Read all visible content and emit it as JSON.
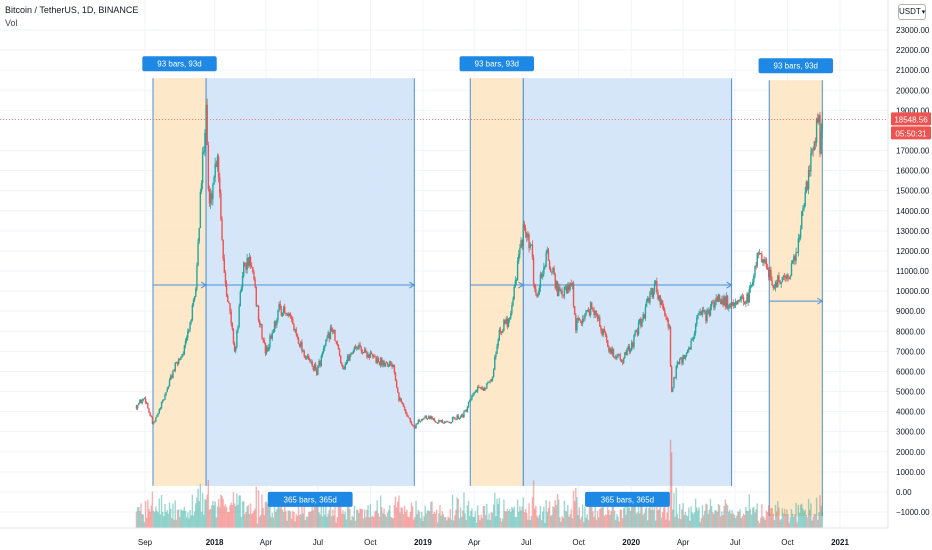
{
  "header": {
    "title": "Bitcoin / TetherUS, 1D, BINANCE",
    "indicator": "Vol",
    "currency": "USDT"
  },
  "price_tag": {
    "price": "18548.56",
    "countdown": "05:50:31"
  },
  "colors": {
    "orange_zone": "#fde5c3",
    "blue_zone": "#cfe3f7",
    "label_bg": "#1e88e5",
    "price_tag": "#ef5350",
    "up": "#26a69a",
    "down": "#ef5350",
    "measure_line": "#4a90d9"
  },
  "chart_data": {
    "type": "candlestick",
    "title": "Bitcoin / TetherUS, 1D, BINANCE",
    "ylim": [
      -1500,
      24500
    ],
    "y_ticks": [
      23000,
      22000,
      21000,
      20000,
      19000,
      17000,
      16000,
      15000,
      14000,
      13000,
      12000,
      11000,
      10000,
      9000,
      8000,
      7000,
      6000,
      5000,
      4000,
      3000,
      2000,
      1000,
      0,
      -1000
    ],
    "y_tick_labels": [
      "23000.00",
      "22000.00",
      "21000.00",
      "20000.00",
      "19000.00",
      "17000.00",
      "16000.00",
      "15000.00",
      "14000.00",
      "13000.00",
      "12000.00",
      "11000.00",
      "10000.00",
      "9000.00",
      "8000.00",
      "7000.00",
      "6000.00",
      "5000.00",
      "4000.00",
      "3000.00",
      "2000.00",
      "1000.00",
      "0.00",
      "−1000.00"
    ],
    "x_tick_labels": [
      "Sep",
      "2018",
      "Apr",
      "Jul",
      "Oct",
      "2019",
      "Apr",
      "Jul",
      "Oct",
      "2020",
      "Apr",
      "Jul",
      "Oct",
      "2021"
    ],
    "x_tick_dates": [
      "2017-09-01",
      "2018-01-01",
      "2018-04-01",
      "2018-07-01",
      "2018-10-01",
      "2019-01-01",
      "2019-04-01",
      "2019-07-01",
      "2019-10-01",
      "2020-01-01",
      "2020-04-01",
      "2020-07-01",
      "2020-10-01",
      "2021-01-01"
    ],
    "x_range": [
      "2017-08-17",
      "2021-01-20"
    ],
    "close_path": [
      [
        "2017-08-17",
        4300
      ],
      [
        "2017-09-01",
        4700
      ],
      [
        "2017-09-15",
        3300
      ],
      [
        "2017-10-01",
        4400
      ],
      [
        "2017-10-20",
        6000
      ],
      [
        "2017-11-10",
        7200
      ],
      [
        "2017-11-28",
        9700
      ],
      [
        "2017-12-08",
        15000
      ],
      [
        "2017-12-17",
        19500
      ],
      [
        "2017-12-22",
        14000
      ],
      [
        "2018-01-06",
        17000
      ],
      [
        "2018-01-17",
        11200
      ],
      [
        "2018-02-06",
        6900
      ],
      [
        "2018-02-20",
        11200
      ],
      [
        "2018-03-05",
        11500
      ],
      [
        "2018-03-20",
        8500
      ],
      [
        "2018-04-01",
        6900
      ],
      [
        "2018-04-25",
        9200
      ],
      [
        "2018-05-15",
        8500
      ],
      [
        "2018-06-10",
        6700
      ],
      [
        "2018-06-29",
        6000
      ],
      [
        "2018-07-25",
        8200
      ],
      [
        "2018-08-14",
        6200
      ],
      [
        "2018-09-05",
        7300
      ],
      [
        "2018-10-15",
        6500
      ],
      [
        "2018-11-10",
        6400
      ],
      [
        "2018-11-20",
        4700
      ],
      [
        "2018-12-15",
        3200
      ],
      [
        "2019-01-05",
        3800
      ],
      [
        "2019-02-08",
        3400
      ],
      [
        "2019-03-15",
        3900
      ],
      [
        "2019-04-02",
        5000
      ],
      [
        "2019-05-01",
        5400
      ],
      [
        "2019-05-14",
        8000
      ],
      [
        "2019-06-01",
        8600
      ],
      [
        "2019-06-26",
        13000
      ],
      [
        "2019-07-10",
        12000
      ],
      [
        "2019-07-17",
        9500
      ],
      [
        "2019-08-06",
        11800
      ],
      [
        "2019-08-28",
        9800
      ],
      [
        "2019-09-20",
        10200
      ],
      [
        "2019-09-25",
        8200
      ],
      [
        "2019-10-25",
        9300
      ],
      [
        "2019-11-25",
        7000
      ],
      [
        "2019-12-18",
        6600
      ],
      [
        "2020-01-05",
        7500
      ],
      [
        "2020-02-12",
        10400
      ],
      [
        "2020-03-08",
        8000
      ],
      [
        "2020-03-12",
        4900
      ],
      [
        "2020-03-20",
        6200
      ],
      [
        "2020-04-10",
        6900
      ],
      [
        "2020-04-30",
        8900
      ],
      [
        "2020-05-10",
        8700
      ],
      [
        "2020-06-01",
        9700
      ],
      [
        "2020-07-01",
        9200
      ],
      [
        "2020-07-25",
        9700
      ],
      [
        "2020-08-10",
        11900
      ],
      [
        "2020-08-25",
        11500
      ],
      [
        "2020-09-05",
        10200
      ],
      [
        "2020-09-30",
        10800
      ],
      [
        "2020-10-15",
        11500
      ],
      [
        "2020-10-22",
        13000
      ],
      [
        "2020-11-05",
        15500
      ],
      [
        "2020-11-18",
        17800
      ],
      [
        "2020-11-25",
        18500
      ],
      [
        "2020-11-26",
        17000
      ],
      [
        "2020-12-01",
        19000
      ]
    ],
    "current_price": 18548.56,
    "measure_zones": [
      {
        "type": "orange",
        "start": "2017-09-15",
        "end": "2017-12-17",
        "label": "93 bars, 93d",
        "label_side": "top",
        "low": 300,
        "high": 20600,
        "arrow_price": 10300
      },
      {
        "type": "blue",
        "start": "2017-12-17",
        "end": "2018-12-17",
        "label": "365 bars, 365d",
        "label_side": "bottom",
        "low": 300,
        "high": 20600,
        "arrow_price": 10300
      },
      {
        "type": "orange",
        "start": "2019-03-25",
        "end": "2019-06-26",
        "label": "93 bars, 93d",
        "label_side": "top",
        "low": 300,
        "high": 20600,
        "arrow_price": 10300
      },
      {
        "type": "blue",
        "start": "2019-06-26",
        "end": "2020-06-25",
        "label": "365 bars, 365d",
        "label_side": "bottom",
        "low": 300,
        "high": 20600,
        "arrow_price": 10300
      },
      {
        "type": "orange",
        "start": "2020-08-30",
        "end": "2020-12-01",
        "label": "93 bars, 93d",
        "label_side": "top",
        "low": -1200,
        "high": 20500,
        "arrow_price": 9500
      }
    ]
  }
}
